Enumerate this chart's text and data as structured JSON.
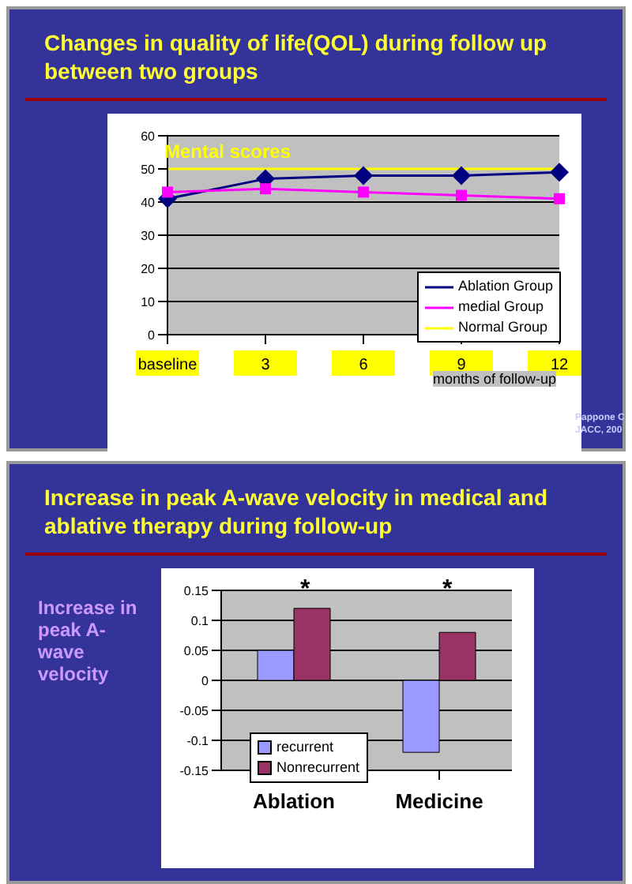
{
  "chart_data": [
    {
      "type": "line",
      "title": "Changes in quality of life(QOL) during follow up between two groups",
      "xlabel": "months of follow-up",
      "categories": [
        "baseline",
        "3",
        "6",
        "9",
        "12"
      ],
      "series": [
        {
          "name": "Ablation Group",
          "color": "#000080",
          "marker": "diamond",
          "values": [
            41,
            47,
            48,
            48,
            49
          ]
        },
        {
          "name": "medial Group",
          "color": "#ff00ff",
          "marker": "square",
          "values": [
            43,
            44,
            43,
            42,
            41
          ]
        },
        {
          "name": "Normal Group",
          "color": "#ffff00",
          "marker": "none",
          "values": [
            50,
            50,
            50,
            50,
            50
          ]
        }
      ],
      "ylim": [
        0,
        60
      ],
      "yticks": [
        0,
        10,
        20,
        30,
        40,
        50,
        60
      ],
      "grid": "y",
      "legend": "right",
      "annotations": [
        "Mental scores",
        "Pappone C",
        "JACC, 200"
      ]
    },
    {
      "type": "bar",
      "title": "Increase in peak A-wave velocity in medical and ablative therapy during follow-up",
      "ylabel": "Increase in peak A-wave velocity",
      "categories": [
        "Ablation",
        "Medicine"
      ],
      "series": [
        {
          "name": "recurrent",
          "color": "#9999ff",
          "values": [
            0.05,
            -0.12
          ]
        },
        {
          "name": "Nonrecurrent",
          "color": "#993366",
          "values": [
            0.12,
            0.08
          ]
        }
      ],
      "ylim": [
        -0.15,
        0.15
      ],
      "yticks": [
        -0.15,
        -0.1,
        -0.05,
        0,
        0.05,
        0.1,
        0.15
      ],
      "grid": "y",
      "legend": "left",
      "annotations": [
        "*",
        "*"
      ]
    }
  ]
}
